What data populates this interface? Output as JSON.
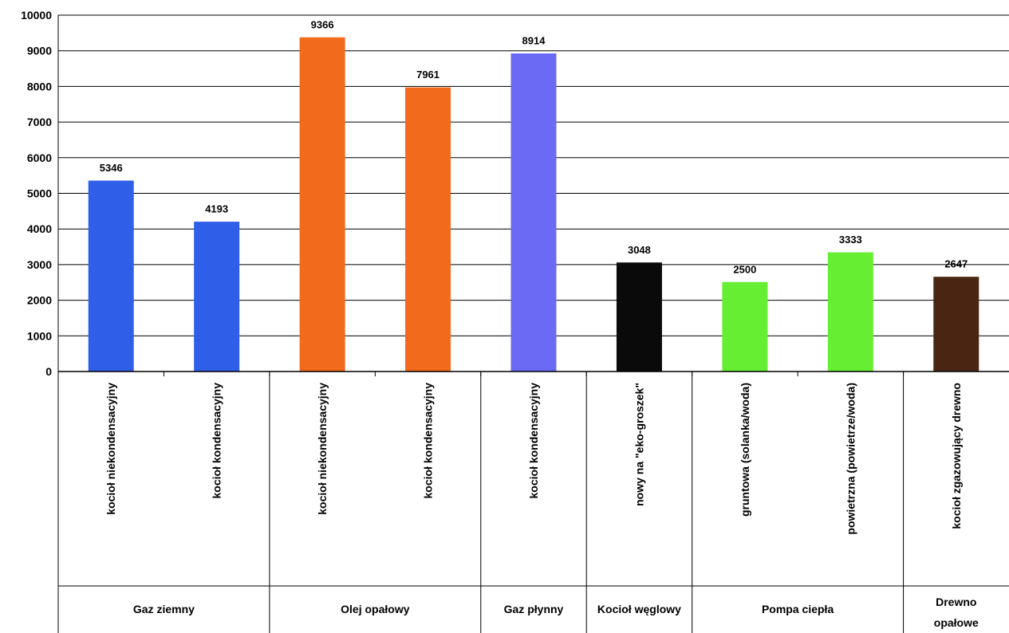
{
  "chart_data": {
    "type": "bar",
    "title": "",
    "xlabel": "",
    "ylabel": "",
    "ylim": [
      0,
      10000
    ],
    "yticks": [
      0,
      1000,
      2000,
      3000,
      4000,
      5000,
      6000,
      7000,
      8000,
      9000,
      10000
    ],
    "grid": true,
    "legend": "none",
    "categories": [
      "kocioł niekondensacyjny",
      "kocioł kondensacyjny",
      "kocioł niekondensacyjny",
      "kocioł kondensacyjny",
      "kocioł kondensacyjny",
      "nowy na \"eko-groszek\"",
      "gruntowa (solanka/woda)",
      "powietrzna (powietrze/woda)",
      "kocioł zgazowujący drewno"
    ],
    "values": [
      5346,
      4193,
      9366,
      7961,
      8914,
      3048,
      2500,
      3333,
      2647
    ],
    "value_labels": [
      "5346",
      "4193",
      "9366",
      "7961",
      "8914",
      "3048",
      "2500",
      "3333",
      "2647"
    ],
    "colors": [
      "#2f5fe8",
      "#2f5fe8",
      "#f26a1b",
      "#f26a1b",
      "#6a6af5",
      "#0a0a0a",
      "#66ee33",
      "#66ee33",
      "#4a2612"
    ],
    "groups": [
      {
        "label": [
          "Gaz ziemny"
        ],
        "span": [
          0,
          1
        ]
      },
      {
        "label": [
          "Olej opałowy"
        ],
        "span": [
          2,
          3
        ]
      },
      {
        "label": [
          "Gaz płynny"
        ],
        "span": [
          4,
          4
        ]
      },
      {
        "label": [
          "Kocioł węglowy"
        ],
        "span": [
          5,
          5
        ]
      },
      {
        "label": [
          "Pompa ciepła"
        ],
        "span": [
          6,
          7
        ]
      },
      {
        "label": [
          "Drewno",
          "opałowe"
        ],
        "span": [
          8,
          8
        ]
      }
    ]
  }
}
